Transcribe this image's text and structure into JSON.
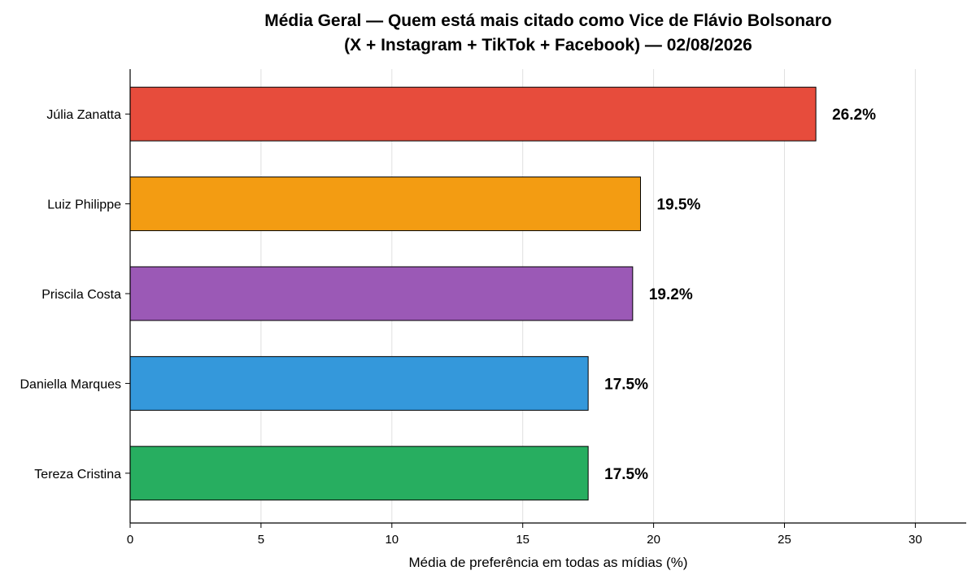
{
  "chart_data": {
    "type": "bar",
    "orientation": "horizontal",
    "title": "Média Geral — Quem está mais citado como Vice de Flávio Bolsonaro",
    "subtitle": "(X + Instagram + TikTok + Facebook) — 02/08/2026",
    "xlabel": "Média de preferência em todas as mídias (%)",
    "ylabel": "",
    "xlim": [
      0,
      32
    ],
    "xticks": [
      0,
      5,
      10,
      15,
      20,
      25,
      30
    ],
    "grid": "vertical",
    "categories": [
      "Júlia Zanatta",
      "Luiz Philippe",
      "Priscila Costa",
      "Daniella Marques",
      "Tereza Cristina"
    ],
    "values": [
      26.2,
      19.5,
      19.2,
      17.5,
      17.5
    ],
    "value_labels": [
      "26.2%",
      "19.5%",
      "19.2%",
      "17.5%",
      "17.5%"
    ],
    "colors": [
      "#e74c3c",
      "#f39c12",
      "#9b59b6",
      "#3498db",
      "#27ae60"
    ]
  }
}
